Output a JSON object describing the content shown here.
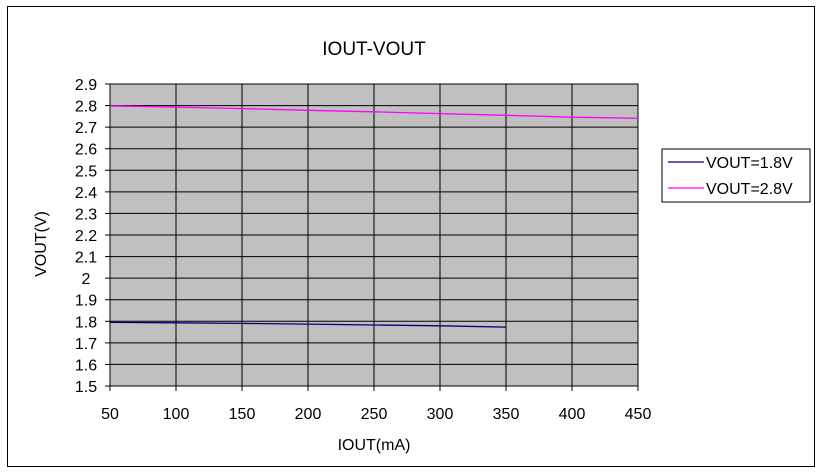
{
  "chart_data": {
    "type": "line",
    "title": "IOUT-VOUT",
    "xlabel": "IOUT(mA)",
    "ylabel": "VOUT(V)",
    "xlim": [
      50,
      450
    ],
    "ylim": [
      1.5,
      2.9
    ],
    "x_ticks": [
      "50",
      "100",
      "150",
      "200",
      "250",
      "300",
      "350",
      "400",
      "450"
    ],
    "y_ticks": [
      "1.5",
      "1.6",
      "1.7",
      "1.8",
      "1.9",
      "2",
      "2.1",
      "2.2",
      "2.3",
      "2.4",
      "2.5",
      "2.6",
      "2.7",
      "2.8",
      "2.9"
    ],
    "grid": true,
    "plot_background": "#C0C0C0",
    "legend_position": "right",
    "series": [
      {
        "name": "VOUT=1.8V",
        "color": "#000080",
        "x": [
          50,
          100,
          150,
          200,
          250,
          300,
          350
        ],
        "y": [
          1.795,
          1.793,
          1.79,
          1.787,
          1.783,
          1.779,
          1.773
        ]
      },
      {
        "name": "VOUT=2.8V",
        "color": "#FF00FF",
        "x": [
          50,
          100,
          150,
          200,
          250,
          300,
          350,
          400,
          450
        ],
        "y": [
          2.798,
          2.793,
          2.786,
          2.778,
          2.771,
          2.763,
          2.755,
          2.746,
          2.741
        ]
      }
    ]
  }
}
